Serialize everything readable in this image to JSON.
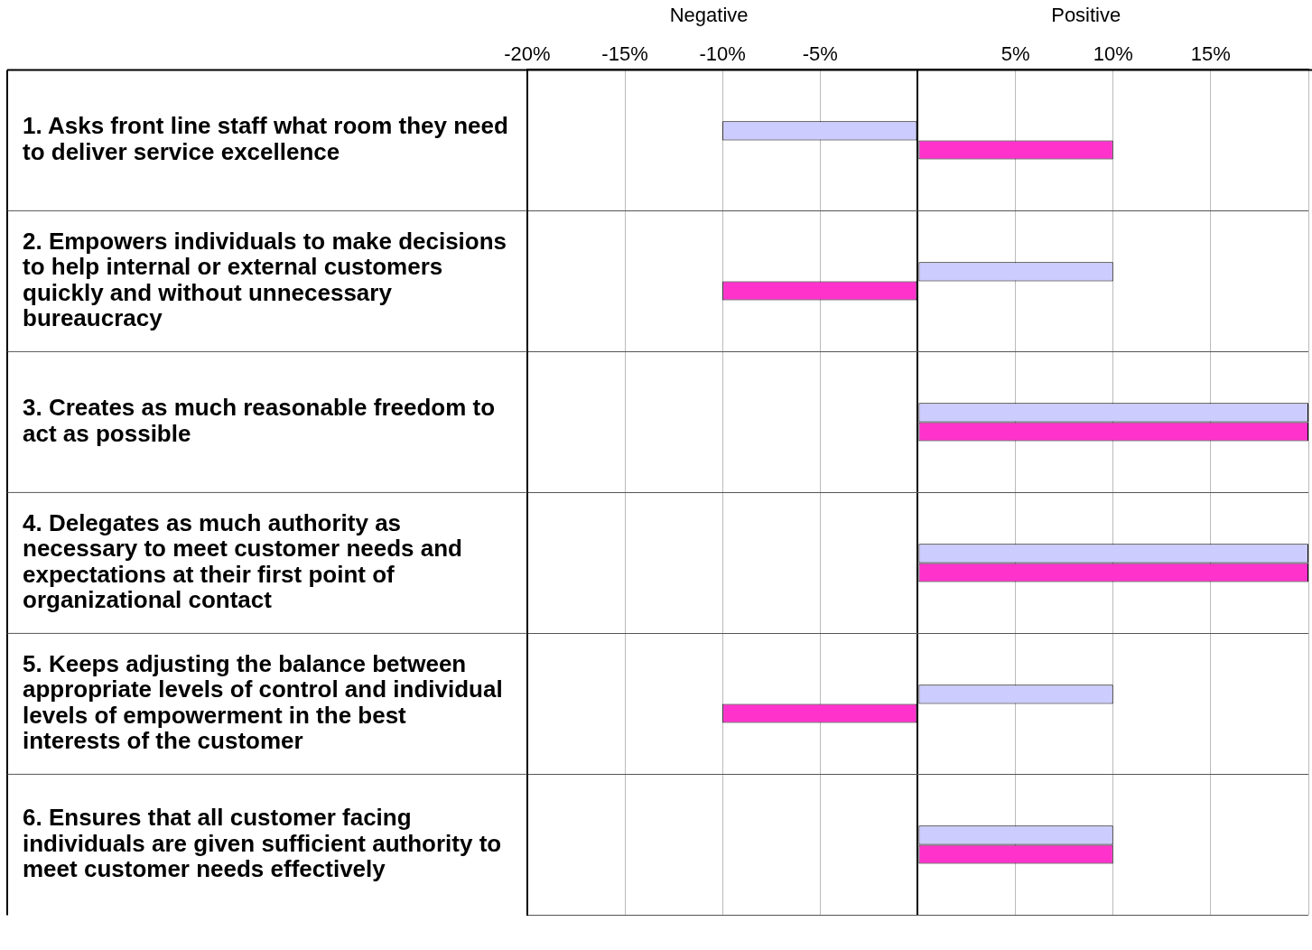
{
  "chart_data": {
    "type": "bar",
    "orientation": "horizontal",
    "annotations": [
      "Negative",
      "Positive"
    ],
    "categories": [
      "1. Asks front line staff what room they need to deliver service excellence",
      "2. Empowers individuals to make decisions to help internal or external customers quickly and without unnecessary bureaucracy",
      "3. Creates as much reasonable freedom to act as possible",
      "4. Delegates as much authority as necessary to meet customer needs and expectations at their first point of organizational contact",
      "5. Keeps adjusting the balance between appropriate levels of control and individual levels of empowerment in the best interests of the customer",
      "6. Ensures that all customer facing individuals are given sufficient authority to meet customer needs effectively"
    ],
    "series": [
      {
        "color": "#ccccff",
        "values": [
          -10,
          10,
          20,
          20,
          10,
          10
        ]
      },
      {
        "color": "#ff33cc",
        "values": [
          10,
          -10,
          20,
          20,
          -10,
          10
        ]
      }
    ],
    "xlim": [
      -20,
      20
    ],
    "xticks": [
      {
        "value": -20,
        "label": "-20%"
      },
      {
        "value": -15,
        "label": "-15%"
      },
      {
        "value": -10,
        "label": "-10%"
      },
      {
        "value": -5,
        "label": "-5%"
      },
      {
        "value": 0,
        "label": null
      },
      {
        "value": 5,
        "label": "5%"
      },
      {
        "value": 10,
        "label": "10%"
      },
      {
        "value": 15,
        "label": "15%"
      },
      {
        "value": 20,
        "label": null
      }
    ],
    "grid": true,
    "legend": false
  }
}
